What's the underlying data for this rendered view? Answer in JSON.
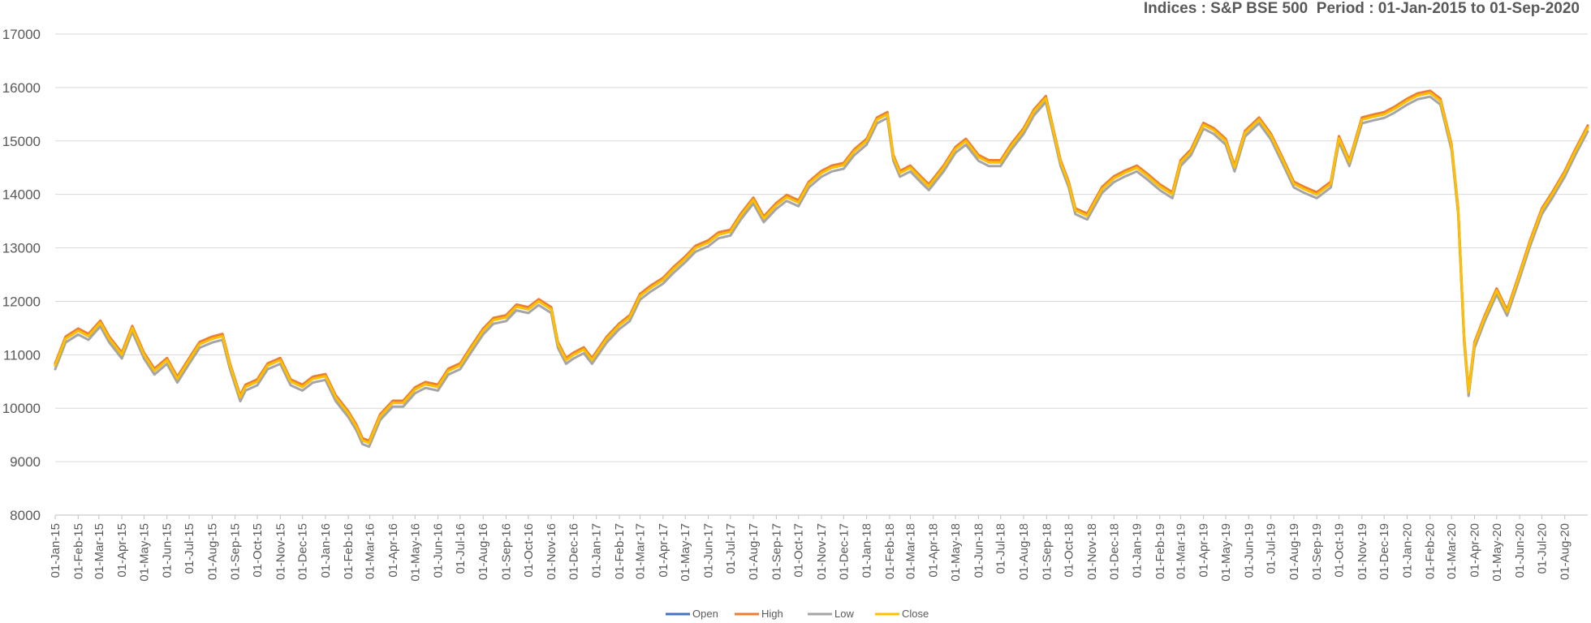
{
  "chart_data": {
    "type": "line",
    "title": "Indices : S&P BSE 500  Period : 01-Jan-2015 to 01-Sep-2020",
    "xlabel": "",
    "ylabel": "",
    "ylim": [
      8000,
      17000
    ],
    "yticks": [
      8000,
      9000,
      10000,
      11000,
      12000,
      13000,
      14000,
      15000,
      16000,
      17000
    ],
    "grid": true,
    "legend_position": "bottom",
    "x_start": "01-Jan-15",
    "x_end": "01-Sep-20",
    "xticks": [
      "01-Jan-15",
      "01-Feb-15",
      "01-Mar-15",
      "01-Apr-15",
      "01-May-15",
      "01-Jun-15",
      "01-Jul-15",
      "01-Aug-15",
      "01-Sep-15",
      "01-Oct-15",
      "01-Nov-15",
      "01-Dec-15",
      "01-Jan-16",
      "01-Feb-16",
      "01-Mar-16",
      "01-Apr-16",
      "01-May-16",
      "01-Jun-16",
      "01-Jul-16",
      "01-Aug-16",
      "01-Sep-16",
      "01-Oct-16",
      "01-Nov-16",
      "01-Dec-16",
      "01-Jan-17",
      "01-Feb-17",
      "01-Mar-17",
      "01-Apr-17",
      "01-May-17",
      "01-Jun-17",
      "01-Jul-17",
      "01-Aug-17",
      "01-Sep-17",
      "01-Oct-17",
      "01-Nov-17",
      "01-Dec-17",
      "01-Jan-18",
      "01-Feb-18",
      "01-Mar-18",
      "01-Apr-18",
      "01-May-18",
      "01-Jun-18",
      "01-Jul-18",
      "01-Aug-18",
      "01-Sep-18",
      "01-Oct-18",
      "01-Nov-18",
      "01-Dec-18",
      "01-Jan-19",
      "01-Feb-19",
      "01-Mar-19",
      "01-Apr-19",
      "01-May-19",
      "01-Jun-19",
      "01-Jul-19",
      "01-Aug-19",
      "01-Sep-19",
      "01-Oct-19",
      "01-Nov-19",
      "01-Dec-19",
      "01-Jan-20",
      "01-Feb-20",
      "01-Mar-20",
      "01-Apr-20",
      "01-May-20",
      "01-Jun-20",
      "01-Jul-20",
      "01-Aug-20"
    ],
    "x": [
      "2015-01-01",
      "2015-01-15",
      "2015-02-01",
      "2015-02-15",
      "2015-03-03",
      "2015-03-15",
      "2015-04-01",
      "2015-04-15",
      "2015-05-01",
      "2015-05-15",
      "2015-06-01",
      "2015-06-15",
      "2015-07-01",
      "2015-07-15",
      "2015-08-01",
      "2015-08-15",
      "2015-08-25",
      "2015-09-08",
      "2015-09-15",
      "2015-10-01",
      "2015-10-15",
      "2015-11-01",
      "2015-11-15",
      "2015-12-01",
      "2015-12-15",
      "2016-01-01",
      "2016-01-15",
      "2016-02-01",
      "2016-02-12",
      "2016-02-20",
      "2016-02-29",
      "2016-03-15",
      "2016-04-01",
      "2016-04-15",
      "2016-05-01",
      "2016-05-15",
      "2016-06-01",
      "2016-06-15",
      "2016-07-01",
      "2016-07-15",
      "2016-08-01",
      "2016-08-15",
      "2016-09-01",
      "2016-09-15",
      "2016-10-01",
      "2016-10-15",
      "2016-11-01",
      "2016-11-10",
      "2016-11-21",
      "2016-12-01",
      "2016-12-15",
      "2016-12-26",
      "2017-01-15",
      "2017-02-01",
      "2017-02-15",
      "2017-03-01",
      "2017-03-15",
      "2017-04-01",
      "2017-04-15",
      "2017-05-01",
      "2017-05-15",
      "2017-06-01",
      "2017-06-15",
      "2017-07-01",
      "2017-07-15",
      "2017-08-01",
      "2017-08-15",
      "2017-09-01",
      "2017-09-15",
      "2017-10-01",
      "2017-10-15",
      "2017-11-01",
      "2017-11-15",
      "2017-12-01",
      "2017-12-15",
      "2018-01-01",
      "2018-01-15",
      "2018-01-29",
      "2018-02-06",
      "2018-02-15",
      "2018-03-01",
      "2018-03-15",
      "2018-03-26",
      "2018-04-15",
      "2018-05-01",
      "2018-05-15",
      "2018-06-01",
      "2018-06-15",
      "2018-07-01",
      "2018-07-15",
      "2018-08-01",
      "2018-08-15",
      "2018-08-31",
      "2018-09-10",
      "2018-09-20",
      "2018-10-01",
      "2018-10-10",
      "2018-10-26",
      "2018-11-15",
      "2018-12-01",
      "2018-12-15",
      "2019-01-01",
      "2019-01-15",
      "2019-02-01",
      "2019-02-18",
      "2019-03-01",
      "2019-03-15",
      "2019-04-01",
      "2019-04-15",
      "2019-05-01",
      "2019-05-13",
      "2019-05-27",
      "2019-06-15",
      "2019-07-01",
      "2019-07-15",
      "2019-08-01",
      "2019-08-15",
      "2019-09-01",
      "2019-09-20",
      "2019-10-01",
      "2019-10-15",
      "2019-11-01",
      "2019-11-15",
      "2019-12-01",
      "2019-12-15",
      "2020-01-01",
      "2020-01-15",
      "2020-02-01",
      "2020-02-15",
      "2020-03-01",
      "2020-03-10",
      "2020-03-18",
      "2020-03-24",
      "2020-04-01",
      "2020-04-15",
      "2020-05-01",
      "2020-05-15",
      "2020-06-01",
      "2020-06-15",
      "2020-07-01",
      "2020-07-15",
      "2020-08-01",
      "2020-08-15",
      "2020-09-01"
    ],
    "series": [
      {
        "name": "Open",
        "color": "#4472C4"
      },
      {
        "name": "High",
        "color": "#ED7D31"
      },
      {
        "name": "Low",
        "color": "#A5A5A5"
      },
      {
        "name": "Close",
        "color": "#FFC000",
        "values": [
          10800,
          11300,
          11450,
          11350,
          11600,
          11300,
          11000,
          11500,
          11000,
          10700,
          10900,
          10550,
          10900,
          11200,
          11300,
          11350,
          10800,
          10200,
          10400,
          10500,
          10800,
          10900,
          10500,
          10400,
          10550,
          10600,
          10200,
          9900,
          9650,
          9400,
          9350,
          9850,
          10100,
          10100,
          10350,
          10450,
          10400,
          10700,
          10800,
          11100,
          11450,
          11650,
          11700,
          11900,
          11850,
          12000,
          11850,
          11200,
          10900,
          11000,
          11100,
          10900,
          11300,
          11550,
          11700,
          12100,
          12250,
          12400,
          12600,
          12800,
          13000,
          13100,
          13250,
          13300,
          13600,
          13900,
          13550,
          13800,
          13950,
          13850,
          14200,
          14400,
          14500,
          14550,
          14800,
          15000,
          15400,
          15500,
          14700,
          14400,
          14500,
          14300,
          14150,
          14500,
          14850,
          15000,
          14700,
          14600,
          14600,
          14900,
          15200,
          15550,
          15800,
          15200,
          14600,
          14200,
          13700,
          13600,
          14100,
          14300,
          14400,
          14500,
          14350,
          14150,
          14000,
          14600,
          14800,
          15300,
          15200,
          15000,
          14500,
          15150,
          15400,
          15100,
          14700,
          14200,
          14100,
          14000,
          14200,
          15050,
          14600,
          15400,
          15450,
          15500,
          15600,
          15750,
          15850,
          15900,
          15750,
          14900,
          13700,
          11300,
          10300,
          11200,
          11700,
          12200,
          11800,
          12500,
          13100,
          13700,
          14000,
          14400,
          14800,
          15250
        ]
      }
    ]
  }
}
